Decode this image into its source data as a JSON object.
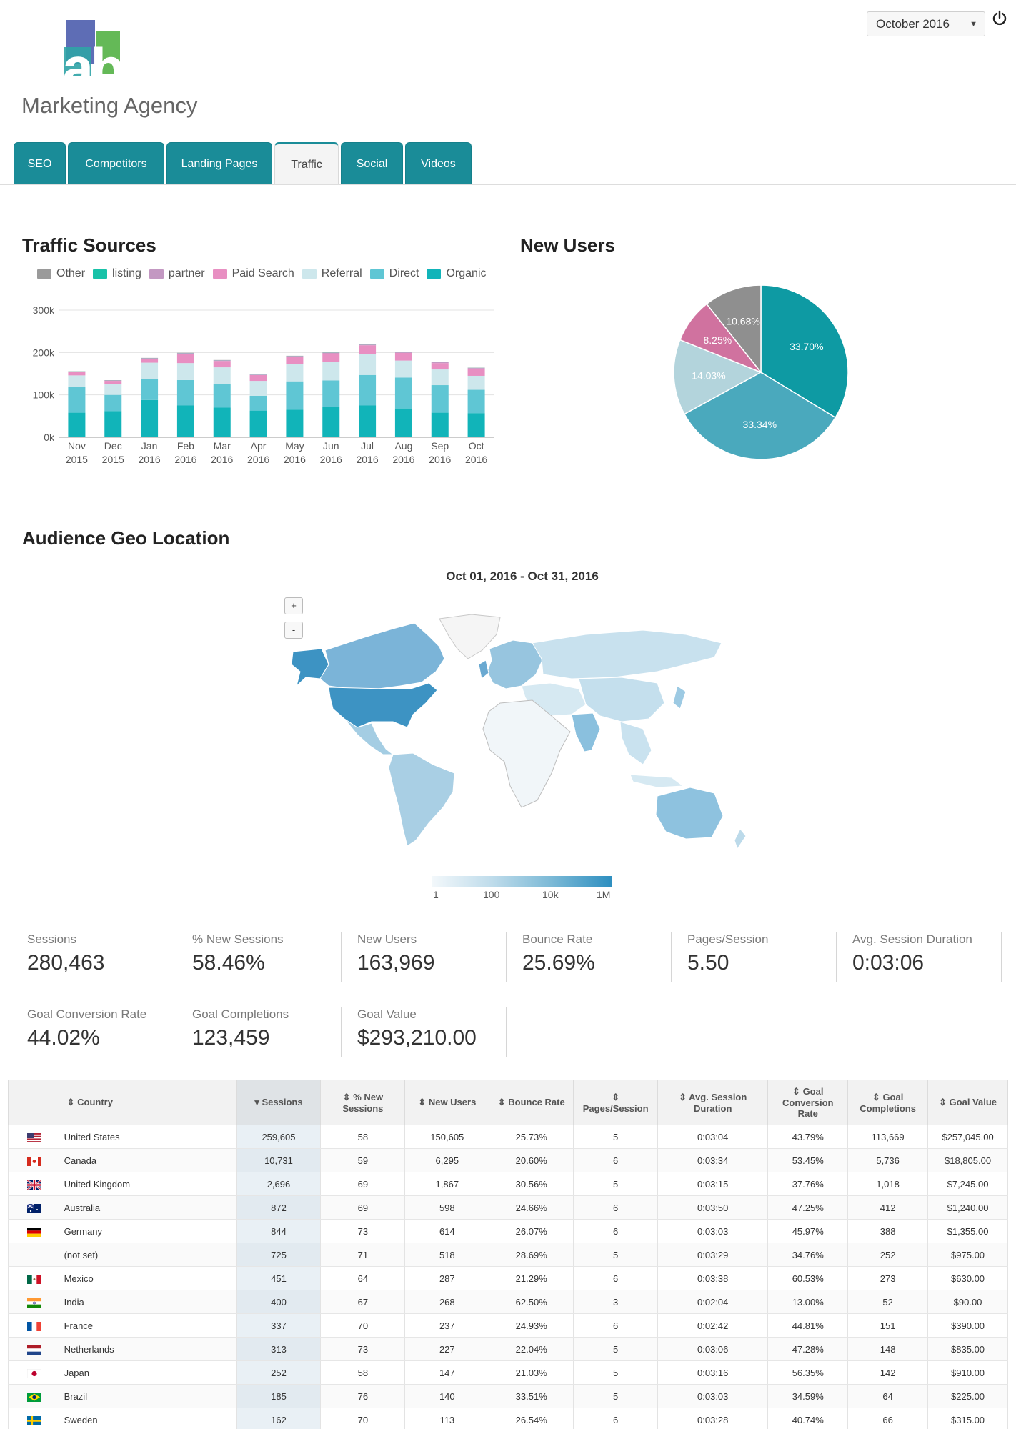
{
  "header": {
    "logo_top": "abc",
    "logo_bottom": "Marketing Agency",
    "month_selector": "October 2016"
  },
  "tabs": [
    "SEO",
    "Competitors",
    "Landing Pages",
    "Traffic",
    "Social",
    "Videos"
  ],
  "active_tab": "Traffic",
  "traffic_sources": {
    "title": "Traffic Sources",
    "legend": [
      "Other",
      "listing",
      "partner",
      "Paid Search",
      "Referral",
      "Direct",
      "Organic"
    ]
  },
  "new_users": {
    "title": "New Users"
  },
  "chart_data": [
    {
      "type": "bar",
      "title": "Traffic Sources",
      "stacked": true,
      "categories": [
        "Nov 2015",
        "Dec 2015",
        "Jan 2016",
        "Feb 2016",
        "Mar 2016",
        "Apr 2016",
        "May 2016",
        "Jun 2016",
        "Jul 2016",
        "Aug 2016",
        "Sep 2016",
        "Oct 2016"
      ],
      "ylim": [
        0,
        300000
      ],
      "yticks": [
        "0k",
        "100k",
        "200k",
        "300k"
      ],
      "series": [
        {
          "name": "Organic",
          "color": "#11b4b9",
          "values": [
            58000,
            62000,
            88000,
            75000,
            70000,
            63000,
            65000,
            72000,
            75000,
            68000,
            58000,
            57000
          ]
        },
        {
          "name": "Direct",
          "color": "#5fc6d4",
          "values": [
            60000,
            38000,
            50000,
            60000,
            55000,
            35000,
            67000,
            62000,
            72000,
            73000,
            65000,
            55000
          ]
        },
        {
          "name": "Referral",
          "color": "#cde7ec",
          "values": [
            28000,
            25000,
            38000,
            40000,
            40000,
            35000,
            40000,
            44000,
            50000,
            40000,
            37000,
            33000
          ]
        },
        {
          "name": "Paid Search",
          "color": "#e88fc2",
          "values": [
            8000,
            8000,
            9000,
            22000,
            15000,
            14000,
            18000,
            20000,
            20000,
            18000,
            15000,
            17000
          ]
        },
        {
          "name": "partner",
          "color": "#c398c2",
          "values": [
            1000,
            1000,
            1500,
            1500,
            1500,
            1000,
            1500,
            1500,
            1500,
            1500,
            2500,
            1500
          ]
        },
        {
          "name": "listing",
          "color": "#18c2a8",
          "values": [
            300,
            300,
            300,
            300,
            300,
            300,
            300,
            300,
            300,
            300,
            300,
            300
          ]
        },
        {
          "name": "Other",
          "color": "#9a9a9a",
          "values": [
            500,
            500,
            500,
            500,
            500,
            500,
            500,
            500,
            500,
            500,
            500,
            500
          ]
        }
      ]
    },
    {
      "type": "pie",
      "title": "New Users",
      "slices": [
        {
          "label": "33.70%",
          "value": 33.7,
          "color": "#0e9aa3"
        },
        {
          "label": "33.34%",
          "value": 33.34,
          "color": "#4aa9bd"
        },
        {
          "label": "14.03%",
          "value": 14.03,
          "color": "#b3d4dc"
        },
        {
          "label": "8.25%",
          "value": 8.25,
          "color": "#d0729f"
        },
        {
          "label": "10.68%",
          "value": 10.68,
          "color": "#8f8f8f"
        }
      ]
    }
  ],
  "geo": {
    "title": "Audience Geo Location",
    "date_range": "Oct 01, 2016 - Oct 31, 2016",
    "zoom_in": "+",
    "zoom_out": "-",
    "scale_labels": [
      "1",
      "100",
      "10k",
      "1M"
    ]
  },
  "metrics": [
    {
      "label": "Sessions",
      "value": "280,463"
    },
    {
      "label": "% New Sessions",
      "value": "58.46%"
    },
    {
      "label": "New Users",
      "value": "163,969"
    },
    {
      "label": "Bounce Rate",
      "value": "25.69%"
    },
    {
      "label": "Pages/Session",
      "value": "5.50"
    },
    {
      "label": "Avg. Session Duration",
      "value": "0:03:06"
    },
    {
      "label": "Goal Conversion Rate",
      "value": "44.02%"
    },
    {
      "label": "Goal Completions",
      "value": "123,459"
    },
    {
      "label": "Goal Value",
      "value": "$293,210.00"
    }
  ],
  "table": {
    "headers": [
      "Country",
      "Sessions",
      "% New Sessions",
      "New Users",
      "Bounce Rate",
      "Pages/Session",
      "Avg. Session Duration",
      "Goal Conversion Rate",
      "Goal Completions",
      "Goal Value"
    ],
    "sort_asc_icon": "⇕",
    "sort_desc_icon": "▾",
    "rows": [
      {
        "flag": "us",
        "country": "United States",
        "cells": [
          "259,605",
          "58",
          "150,605",
          "25.73%",
          "5",
          "0:03:04",
          "43.79%",
          "113,669",
          "$257,045.00"
        ]
      },
      {
        "flag": "ca",
        "country": "Canada",
        "cells": [
          "10,731",
          "59",
          "6,295",
          "20.60%",
          "6",
          "0:03:34",
          "53.45%",
          "5,736",
          "$18,805.00"
        ]
      },
      {
        "flag": "gb",
        "country": "United Kingdom",
        "cells": [
          "2,696",
          "69",
          "1,867",
          "30.56%",
          "5",
          "0:03:15",
          "37.76%",
          "1,018",
          "$7,245.00"
        ]
      },
      {
        "flag": "au",
        "country": "Australia",
        "cells": [
          "872",
          "69",
          "598",
          "24.66%",
          "6",
          "0:03:50",
          "47.25%",
          "412",
          "$1,240.00"
        ]
      },
      {
        "flag": "de",
        "country": "Germany",
        "cells": [
          "844",
          "73",
          "614",
          "26.07%",
          "6",
          "0:03:03",
          "45.97%",
          "388",
          "$1,355.00"
        ]
      },
      {
        "flag": "",
        "country": "(not set)",
        "cells": [
          "725",
          "71",
          "518",
          "28.69%",
          "5",
          "0:03:29",
          "34.76%",
          "252",
          "$975.00"
        ]
      },
      {
        "flag": "mx",
        "country": "Mexico",
        "cells": [
          "451",
          "64",
          "287",
          "21.29%",
          "6",
          "0:03:38",
          "60.53%",
          "273",
          "$630.00"
        ]
      },
      {
        "flag": "in",
        "country": "India",
        "cells": [
          "400",
          "67",
          "268",
          "62.50%",
          "3",
          "0:02:04",
          "13.00%",
          "52",
          "$90.00"
        ]
      },
      {
        "flag": "fr",
        "country": "France",
        "cells": [
          "337",
          "70",
          "237",
          "24.93%",
          "6",
          "0:02:42",
          "44.81%",
          "151",
          "$390.00"
        ]
      },
      {
        "flag": "nl",
        "country": "Netherlands",
        "cells": [
          "313",
          "73",
          "227",
          "22.04%",
          "5",
          "0:03:06",
          "47.28%",
          "148",
          "$835.00"
        ]
      },
      {
        "flag": "jp",
        "country": "Japan",
        "cells": [
          "252",
          "58",
          "147",
          "21.03%",
          "5",
          "0:03:16",
          "56.35%",
          "142",
          "$910.00"
        ]
      },
      {
        "flag": "br",
        "country": "Brazil",
        "cells": [
          "185",
          "76",
          "140",
          "33.51%",
          "5",
          "0:03:03",
          "34.59%",
          "64",
          "$225.00"
        ]
      },
      {
        "flag": "se",
        "country": "Sweden",
        "cells": [
          "162",
          "70",
          "113",
          "26.54%",
          "6",
          "0:03:28",
          "40.74%",
          "66",
          "$315.00"
        ]
      }
    ]
  }
}
